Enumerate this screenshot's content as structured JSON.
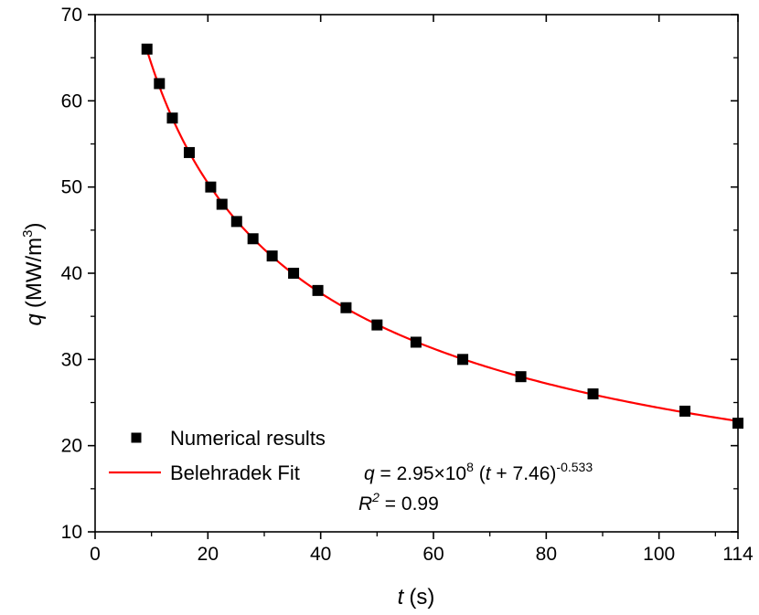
{
  "chart_data": {
    "type": "scatter",
    "xlabel": {
      "symbol": "t",
      "unit": "(s)"
    },
    "ylabel": {
      "symbol": "q",
      "unit": "(MW/m",
      "unit_sup": "3",
      "unit_close": ")"
    },
    "xlim": [
      0,
      114
    ],
    "ylim": [
      10,
      70
    ],
    "x_ticks": [
      0,
      20,
      40,
      60,
      80,
      100,
      114
    ],
    "y_ticks": [
      10,
      20,
      30,
      40,
      50,
      60,
      70
    ],
    "grid": false,
    "legend_position": "bottom-left",
    "series": [
      {
        "name": "Numerical results",
        "kind": "scatter",
        "marker": "square",
        "color": "#000000",
        "points": [
          [
            9.2,
            66
          ],
          [
            11.4,
            62
          ],
          [
            13.7,
            58
          ],
          [
            16.7,
            54
          ],
          [
            20.5,
            50
          ],
          [
            22.5,
            48
          ],
          [
            25.1,
            46
          ],
          [
            28.0,
            44
          ],
          [
            31.4,
            42
          ],
          [
            35.2,
            40
          ],
          [
            39.5,
            38
          ],
          [
            44.5,
            36
          ],
          [
            50.0,
            34
          ],
          [
            56.9,
            32
          ],
          [
            65.2,
            30
          ],
          [
            75.5,
            28
          ],
          [
            88.3,
            26
          ],
          [
            104.6,
            24
          ],
          [
            114.0,
            22.6
          ]
        ]
      },
      {
        "name": "Belehradek Fit",
        "kind": "line",
        "color": "#ff0000",
        "model": {
          "a": 295000000,
          "b": 7.46,
          "c": -0.533
        },
        "x_range": [
          9,
          114
        ]
      }
    ],
    "annotation": {
      "eq_lhs": "q",
      "eq_mid": " = 2.95×10",
      "eq_exp1": "8",
      "eq_paren_open": " (",
      "eq_var": "t",
      "eq_rest": " + 7.46)",
      "eq_exp2": "-0.533",
      "r2_sym": "R",
      "r2_exp": "2",
      "r2_val": " = 0.99"
    }
  }
}
